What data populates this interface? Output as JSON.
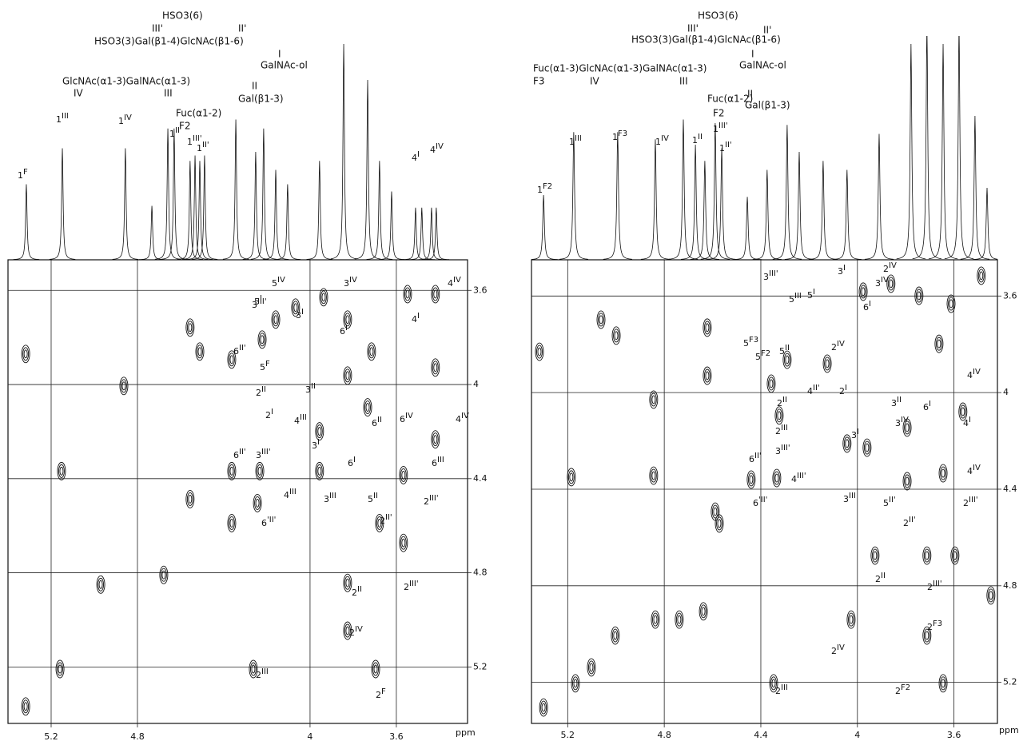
{
  "chart_data": [
    {
      "type": "cosy",
      "structure": [
        "HSO3(6)",
        "III'",
        "II'",
        "HSO3(3)Gal(β1-4)GlcNAc(β1-6)",
        "I",
        "GalNAc-ol",
        "GlcNAc(α1-3)GalNAc(α1-3)",
        "IV",
        "III",
        "II",
        "Gal(β1-3)",
        "Fuc(α1-2)",
        "F2"
      ],
      "xlabel": "ppm",
      "xlim": [
        5.4,
        3.27
      ],
      "ylim": [
        3.47,
        5.44
      ],
      "xticks": [
        5.2,
        4.8,
        4.0,
        3.6
      ],
      "yticks": [
        3.6,
        4.0,
        4.4,
        4.8,
        5.2
      ],
      "grid": true,
      "spectrum": {
        "ppm": [
          5.315,
          5.148,
          4.856,
          4.733,
          4.659,
          4.63,
          4.556,
          4.533,
          4.511,
          4.489,
          4.344,
          4.252,
          4.215,
          4.159,
          4.104,
          3.956,
          3.844,
          3.733,
          3.678,
          3.622,
          3.511,
          3.482,
          3.437,
          3.415
        ],
        "height": [
          0.42,
          0.62,
          0.62,
          0.3,
          0.73,
          0.73,
          0.55,
          0.58,
          0.55,
          0.58,
          0.78,
          0.6,
          0.73,
          0.5,
          0.42,
          0.55,
          1.2,
          1.0,
          0.55,
          0.38,
          0.29,
          0.29,
          0.29,
          0.29
        ]
      },
      "cross_peaks": {
        "x": [
          5.318,
          5.318,
          5.152,
          5.159,
          4.863,
          4.97,
          4.678,
          4.556,
          4.556,
          4.511,
          4.363,
          4.363,
          4.363,
          4.233,
          4.244,
          4.263,
          4.222,
          4.159,
          4.067,
          3.937,
          3.826,
          3.826,
          3.826,
          3.826,
          3.696,
          3.678,
          3.567,
          3.548,
          3.419,
          3.419,
          3.419,
          3.715,
          3.567,
          3.956,
          3.956,
          3.733
        ],
        "y": [
          3.87,
          5.368,
          4.368,
          5.209,
          4.006,
          4.85,
          4.809,
          4.487,
          3.758,
          3.86,
          3.894,
          4.589,
          4.368,
          4.368,
          4.504,
          5.209,
          3.809,
          3.724,
          3.673,
          3.629,
          3.724,
          3.962,
          4.843,
          5.046,
          5.209,
          4.589,
          4.673,
          3.616,
          3.616,
          3.928,
          4.233,
          3.86,
          4.385,
          4.199,
          4.368,
          4.097
        ]
      },
      "labels_1d": [
        "1F",
        "1III",
        "1IV",
        "1II",
        "1III'",
        "1II'",
        "4I",
        "4IV"
      ],
      "labels_2d": [
        "3IV",
        "4IV",
        "4I",
        "3I",
        "5I",
        "5IV",
        "3III'",
        "6I",
        "6II'",
        "5F",
        "2II",
        "2I",
        "3II",
        "4III",
        "6II",
        "6IV",
        "4IV",
        "6I",
        "3I",
        "6II'",
        "3III'",
        "4III",
        "3III",
        "6'II'",
        "5II",
        "6III",
        "2III'",
        "2II'",
        "2II",
        "2III'",
        "2IV",
        "2III",
        "2F"
      ]
    },
    {
      "type": "cosy",
      "structure": [
        "HSO3(6)",
        "III'",
        "II'",
        "HSO3(3)Gal(β1-4)GlcNAc(β1-6)",
        "I",
        "GalNAc-ol",
        "Fuc(α1-3)GlcNAc(α1-3)GalNAc(α1-3)",
        "F3",
        "IV",
        "III",
        "II",
        "Gal(β1-3)",
        "Fuc(α1-2)",
        "F2"
      ],
      "xlabel": "ppm",
      "xlim": [
        5.35,
        3.42
      ],
      "ylim": [
        3.45,
        5.37
      ],
      "xticks": [
        5.2,
        4.8,
        4.4,
        4.0,
        3.6
      ],
      "yticks": [
        3.6,
        4.0,
        4.4,
        4.8,
        5.2
      ],
      "grid": true,
      "spectrum": {
        "ppm": [
          5.3,
          5.175,
          4.993,
          4.837,
          4.721,
          4.671,
          4.632,
          4.589,
          4.562,
          4.456,
          4.374,
          4.291,
          4.241,
          4.142,
          4.043,
          3.91,
          3.778,
          3.712,
          3.645,
          3.579,
          3.513,
          3.463
        ],
        "height": [
          0.36,
          0.71,
          0.71,
          0.67,
          0.78,
          0.64,
          0.55,
          0.76,
          0.62,
          0.35,
          0.5,
          0.75,
          0.6,
          0.55,
          0.5,
          0.7,
          1.2,
          1.3,
          1.2,
          1.3,
          0.8,
          0.4
        ]
      },
      "cross_peaks": {
        "x": [
          5.317,
          5.185,
          5.062,
          4.999,
          4.844,
          4.844,
          4.738,
          4.837,
          4.638,
          4.572,
          4.622,
          4.622,
          4.357,
          4.291,
          4.125,
          3.976,
          3.861,
          3.745,
          3.612,
          3.662,
          3.487,
          4.324,
          4.043,
          3.96,
          3.794,
          3.563,
          3.645,
          3.794,
          3.927,
          3.712,
          3.596,
          4.026,
          3.712,
          3.645,
          4.347,
          3.447,
          4.334,
          5.3,
          5.168,
          5.102,
          5.003,
          4.589,
          4.44
        ],
        "y": [
          3.831,
          4.35,
          3.698,
          3.764,
          4.029,
          4.344,
          4.94,
          4.94,
          4.906,
          4.542,
          3.731,
          3.93,
          3.963,
          3.864,
          3.88,
          3.582,
          3.549,
          3.599,
          3.632,
          3.798,
          3.516,
          4.095,
          4.211,
          4.228,
          4.145,
          4.079,
          4.334,
          4.367,
          4.675,
          4.675,
          4.675,
          4.94,
          5.006,
          5.204,
          5.204,
          4.84,
          4.354,
          5.304,
          5.204,
          5.138,
          5.006,
          4.493,
          4.36
        ]
      },
      "labels_1d": [
        "1F2",
        "1III",
        "1F3",
        "1IV",
        "1II",
        "1III'",
        "1II'"
      ],
      "labels_2d": [
        "3III'",
        "3I",
        "3IV",
        "2IV",
        "5III",
        "5I",
        "6I",
        "2IV",
        "5F3",
        "5F2",
        "5II",
        "4II'",
        "2I",
        "4IV",
        "2II",
        "2III",
        "3III'",
        "3I",
        "3II",
        "3IV",
        "6I",
        "4I",
        "6II'",
        "4IV",
        "4III'",
        "6'II'",
        "3III",
        "5II'",
        "2III'",
        "2II'",
        "2II",
        "2III'",
        "2IV",
        "2F3",
        "2III",
        "2F2"
      ]
    }
  ]
}
